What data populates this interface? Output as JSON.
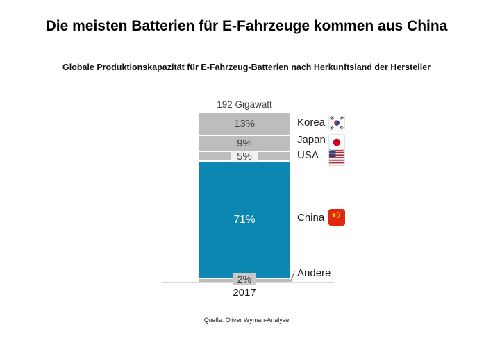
{
  "header": {
    "title": "Die meisten Batterien für E-Fahrzeuge kommen aus China",
    "subtitle": "Globale Produktionskapazität für E-Fahrzeug-Batterien nach Herkunftsland der Hersteller"
  },
  "source": "Quelle: Oliver Wyman-Analyse",
  "chart_data": {
    "type": "bar",
    "stacked": true,
    "title": "Die meisten Batterien für E-Fahrzeuge kommen aus China",
    "subtitle": "Globale Produktionskapazität für E-Fahrzeug-Batterien nach Herkunftsland der Hersteller",
    "total_label": "192 Gigawatt",
    "categories": [
      "2017"
    ],
    "series": [
      {
        "id": "korea",
        "name": "Korea",
        "value_pct": 13,
        "label": "13%",
        "color": "#bdbdbd",
        "flag": "south-korea"
      },
      {
        "id": "japan",
        "name": "Japan",
        "value_pct": 9,
        "label": "9%",
        "color": "#bdbdbd",
        "flag": "japan"
      },
      {
        "id": "usa",
        "name": "USA",
        "value_pct": 5,
        "label": "5%",
        "color": "#bdbdbd",
        "flag": "usa"
      },
      {
        "id": "china",
        "name": "China",
        "value_pct": 71,
        "label": "71%",
        "color": "#0b87b1",
        "flag": "china"
      },
      {
        "id": "andere",
        "name": "Andere",
        "value_pct": 2,
        "label": "2%",
        "color": "#bdbdbd",
        "flag": null
      }
    ],
    "ylim": [
      0,
      100
    ],
    "grid": false,
    "legend_position": "right",
    "colors": {
      "highlight": "#0b87b1",
      "muted": "#bdbdbd",
      "axis_line": "#d9d9d9",
      "label_dark": "#3f3f3f",
      "label_light": "#ffffff"
    }
  }
}
